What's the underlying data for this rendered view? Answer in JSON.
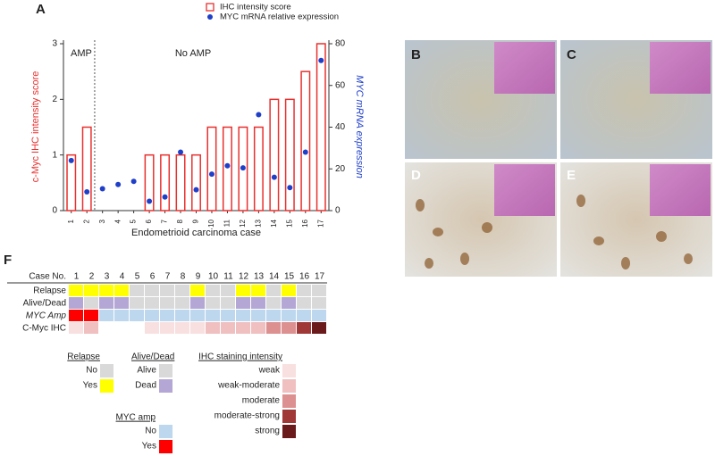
{
  "chart_data": {
    "type": "bar",
    "legend_items": [
      "IHC intensity score",
      "MYC mRNA relative expression"
    ],
    "xlabel": "Endometrioid carcinoma case",
    "ylabel": "c-Myc IHC intensity score",
    "y2label": "MYC mRNA expression",
    "annotations": [
      "AMP",
      "No AMP"
    ],
    "categories": [
      "1",
      "2",
      "3",
      "4",
      "5",
      "6",
      "7",
      "8",
      "9",
      "10",
      "11",
      "12",
      "13",
      "14",
      "15",
      "16",
      "17"
    ],
    "series": [
      {
        "name": "IHC intensity score",
        "type": "bar",
        "color": "#e8312f",
        "values": [
          1,
          1.5,
          0,
          0,
          0,
          1,
          1,
          1,
          1,
          1.5,
          1.5,
          1.5,
          1.5,
          2,
          2,
          2.5,
          3
        ]
      },
      {
        "name": "MYC mRNA relative expression",
        "type": "scatter",
        "axis": "y2",
        "color": "#1f3fc9",
        "values": [
          24,
          9,
          10.5,
          12.5,
          14,
          4.5,
          6.5,
          28,
          10,
          17.5,
          21.5,
          20.5,
          46,
          16,
          11,
          28,
          72
        ]
      }
    ],
    "ylim": [
      0,
      3
    ],
    "yticks": [
      0,
      1,
      2,
      3
    ],
    "y2lim": [
      0,
      80
    ],
    "y2ticks": [
      0,
      20,
      40,
      60,
      80
    ]
  },
  "panel_labels": [
    "A",
    "B",
    "C",
    "D",
    "E",
    "F"
  ],
  "heatmap": {
    "header_label": "Case No.",
    "cases": [
      "1",
      "2",
      "3",
      "4",
      "5",
      "6",
      "7",
      "8",
      "9",
      "10",
      "11",
      "12",
      "13",
      "14",
      "15",
      "16",
      "17"
    ],
    "rows": [
      {
        "label": "Relapse",
        "legend": 0,
        "values": [
          "Yes",
          "Yes",
          "Yes",
          "Yes",
          "No",
          "No",
          "No",
          "No",
          "Yes",
          "No",
          "No",
          "Yes",
          "Yes",
          "No",
          "Yes",
          "No",
          "No"
        ]
      },
      {
        "label": "Alive/Dead",
        "legend": 1,
        "values": [
          "Dead",
          "Alive",
          "Dead",
          "Dead",
          "Alive",
          "Alive",
          "Alive",
          "Alive",
          "Dead",
          "Alive",
          "Alive",
          "Dead",
          "Dead",
          "Alive",
          "Dead",
          "Alive",
          "Alive"
        ]
      },
      {
        "label": "MYC Amp",
        "legend": 2,
        "values": [
          "Yes",
          "Yes",
          "No",
          "No",
          "No",
          "No",
          "No",
          "No",
          "No",
          "No",
          "No",
          "No",
          "No",
          "No",
          "No",
          "No",
          "No"
        ]
      },
      {
        "label": "C-Myc IHC",
        "legend": 3,
        "values": [
          "weak",
          "weak-moderate",
          null,
          null,
          null,
          "weak",
          "weak",
          "weak",
          "weak",
          "weak-moderate",
          "weak-moderate",
          "weak-moderate",
          "weak-moderate",
          "moderate",
          "moderate",
          "moderate-strong",
          "strong"
        ]
      }
    ]
  },
  "legends": [
    {
      "title": "Relapse",
      "items": [
        {
          "label": "No",
          "color": "#d9d9d9"
        },
        {
          "label": "Yes",
          "color": "#ffff00"
        }
      ]
    },
    {
      "title": "Alive/Dead",
      "items": [
        {
          "label": "Alive",
          "color": "#d9d9d9"
        },
        {
          "label": "Dead",
          "color": "#b4a7d6"
        }
      ]
    },
    {
      "title": "MYC amp",
      "items": [
        {
          "label": "No",
          "color": "#bdd7ee"
        },
        {
          "label": "Yes",
          "color": "#ff0000"
        }
      ]
    },
    {
      "title": "IHC staining intensity",
      "items": [
        {
          "label": "weak",
          "color": "#f8e0e0"
        },
        {
          "label": "weak-moderate",
          "color": "#f0c0c0"
        },
        {
          "label": "moderate",
          "color": "#dc9090"
        },
        {
          "label": "moderate-strong",
          "color": "#a03838"
        },
        {
          "label": "strong",
          "color": "#6a1a1a"
        }
      ]
    }
  ]
}
